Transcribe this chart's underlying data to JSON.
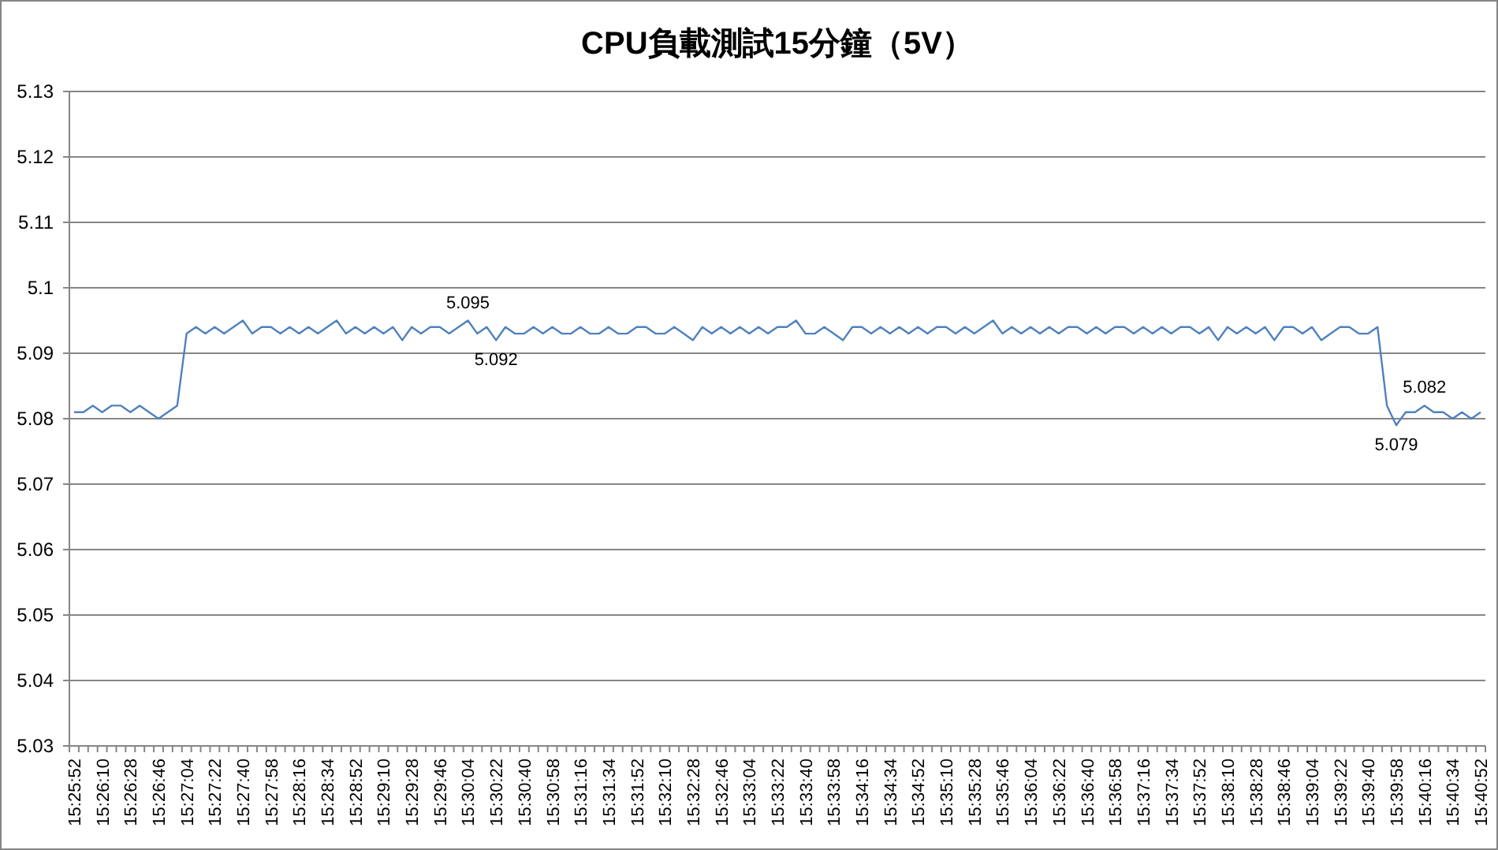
{
  "chart_data": {
    "type": "line",
    "title": "CPU負載測試15分鐘（5V）",
    "categories": [
      "15:25:52",
      null,
      null,
      "15:26:10",
      null,
      null,
      "15:26:28",
      null,
      null,
      "15:26:46",
      null,
      null,
      "15:27:04",
      null,
      null,
      "15:27:22",
      null,
      null,
      "15:27:40",
      null,
      null,
      "15:27:58",
      null,
      null,
      "15:28:16",
      null,
      null,
      "15:28:34",
      null,
      null,
      "15:28:52",
      null,
      null,
      "15:29:10",
      null,
      null,
      "15:29:28",
      null,
      null,
      "15:29:46",
      null,
      null,
      "15:30:04",
      null,
      null,
      "15:30:22",
      null,
      null,
      "15:30:40",
      null,
      null,
      "15:30:58",
      null,
      null,
      "15:31:16",
      null,
      null,
      "15:31:34",
      null,
      null,
      "15:31:52",
      null,
      null,
      "15:32:10",
      null,
      null,
      "15:32:28",
      null,
      null,
      "15:32:46",
      null,
      null,
      "15:33:04",
      null,
      null,
      "15:33:22",
      null,
      null,
      "15:33:40",
      null,
      null,
      "15:33:58",
      null,
      null,
      "15:34:16",
      null,
      null,
      "15:34:34",
      null,
      null,
      "15:34:52",
      null,
      null,
      "15:35:10",
      null,
      null,
      "15:35:28",
      null,
      null,
      "15:35:46",
      null,
      null,
      "15:36:04",
      null,
      null,
      "15:36:22",
      null,
      null,
      "15:36:40",
      null,
      null,
      "15:36:58",
      null,
      null,
      "15:37:16",
      null,
      null,
      "15:37:34",
      null,
      null,
      "15:37:52",
      null,
      null,
      "15:38:10",
      null,
      null,
      "15:38:28",
      null,
      null,
      "15:38:46",
      null,
      null,
      "15:39:04",
      null,
      null,
      "15:39:22",
      null,
      null,
      "15:39:40",
      null,
      null,
      "15:39:58",
      null,
      null,
      "15:40:16",
      null,
      null,
      "15:40:34",
      null,
      null,
      "15:40:52"
    ],
    "series": [
      {
        "color": "#4f81bd",
        "values": [
          5.081,
          5.081,
          5.082,
          5.081,
          5.082,
          5.082,
          5.081,
          5.082,
          5.081,
          5.08,
          5.081,
          5.082,
          5.093,
          5.094,
          5.093,
          5.094,
          5.093,
          5.094,
          5.095,
          5.093,
          5.094,
          5.094,
          5.093,
          5.094,
          5.093,
          5.094,
          5.093,
          5.094,
          5.095,
          5.093,
          5.094,
          5.093,
          5.094,
          5.093,
          5.094,
          5.092,
          5.094,
          5.093,
          5.094,
          5.094,
          5.093,
          5.094,
          5.095,
          5.093,
          5.094,
          5.092,
          5.094,
          5.093,
          5.093,
          5.094,
          5.093,
          5.094,
          5.093,
          5.093,
          5.094,
          5.093,
          5.093,
          5.094,
          5.093,
          5.093,
          5.094,
          5.094,
          5.093,
          5.093,
          5.094,
          5.093,
          5.092,
          5.094,
          5.093,
          5.094,
          5.093,
          5.094,
          5.093,
          5.094,
          5.093,
          5.094,
          5.094,
          5.095,
          5.093,
          5.093,
          5.094,
          5.093,
          5.092,
          5.094,
          5.094,
          5.093,
          5.094,
          5.093,
          5.094,
          5.093,
          5.094,
          5.093,
          5.094,
          5.094,
          5.093,
          5.094,
          5.093,
          5.094,
          5.095,
          5.093,
          5.094,
          5.093,
          5.094,
          5.093,
          5.094,
          5.093,
          5.094,
          5.094,
          5.093,
          5.094,
          5.093,
          5.094,
          5.094,
          5.093,
          5.094,
          5.093,
          5.094,
          5.093,
          5.094,
          5.094,
          5.093,
          5.094,
          5.092,
          5.094,
          5.093,
          5.094,
          5.093,
          5.094,
          5.092,
          5.094,
          5.094,
          5.093,
          5.094,
          5.092,
          5.093,
          5.094,
          5.094,
          5.093,
          5.093,
          5.094,
          5.082,
          5.079,
          5.081,
          5.081,
          5.082,
          5.081,
          5.081,
          5.08,
          5.081,
          5.08,
          5.081
        ]
      }
    ],
    "ylim": [
      5.03,
      5.13
    ],
    "yticks": [
      5.03,
      5.04,
      5.05,
      5.06,
      5.07,
      5.08,
      5.09,
      5.1,
      5.11,
      5.12,
      5.13
    ],
    "grid": "y",
    "annotations": [
      {
        "text": "5.095",
        "x": "15:30:04",
        "y": 5.095
      },
      {
        "text": "5.092",
        "x": "15:30:22",
        "y": 5.092
      },
      {
        "text": "5.079",
        "x": "15:39:58",
        "y": 5.079
      },
      {
        "text": "5.082",
        "x": "15:40:16",
        "y": 5.082
      }
    ]
  }
}
